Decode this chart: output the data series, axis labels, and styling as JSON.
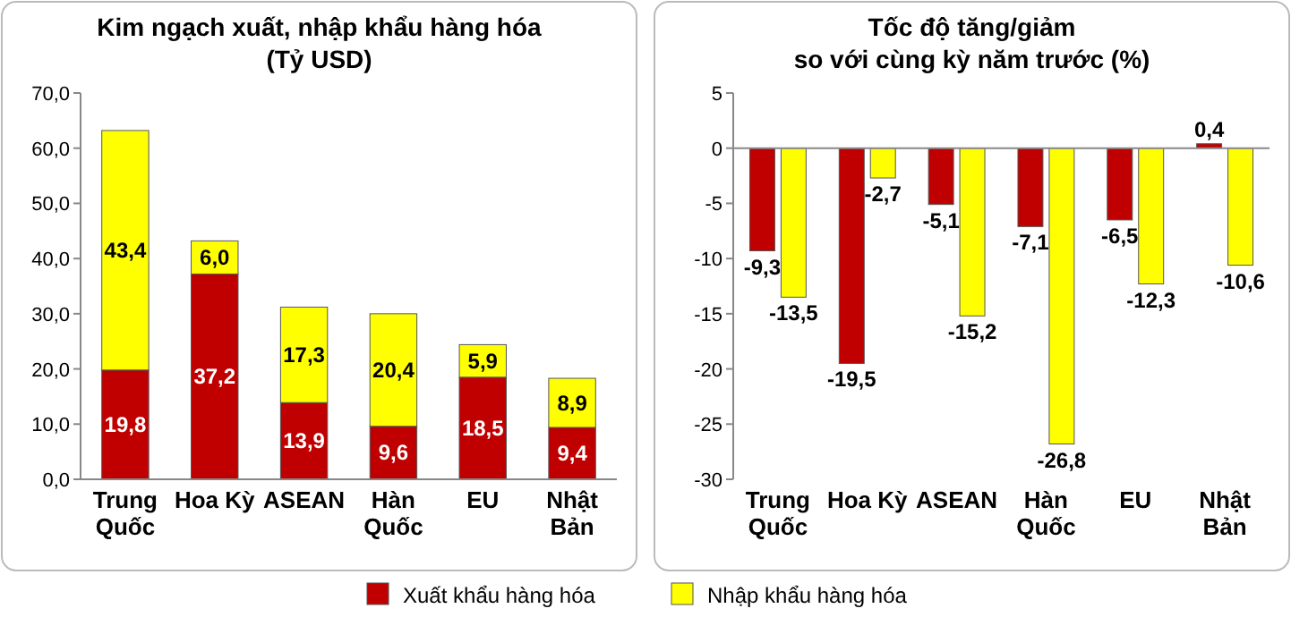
{
  "chart_data": [
    {
      "type": "bar",
      "title": "Kim ngạch xuất, nhập khẩu hàng hóa",
      "subtitle": "(Tỷ USD)",
      "stacked": true,
      "legend": "bottom",
      "categories": [
        "Trung Quốc",
        "Hoa Kỳ",
        "ASEAN",
        "Hàn Quốc",
        "EU",
        "Nhật Bản"
      ],
      "ylim": [
        0,
        70
      ],
      "yticks": [
        {
          "value": 0,
          "label": "0,0"
        },
        {
          "value": 10,
          "label": "10,0"
        },
        {
          "value": 20,
          "label": "20,0"
        },
        {
          "value": 30,
          "label": "30,0"
        },
        {
          "value": 40,
          "label": "40,0"
        },
        {
          "value": 50,
          "label": "50,0"
        },
        {
          "value": 60,
          "label": "60,0"
        },
        {
          "value": 70,
          "label": "70,0"
        }
      ],
      "series": [
        {
          "name": "Xuất khẩu hàng hóa",
          "color": "#c00000",
          "values": [
            19.8,
            37.2,
            13.9,
            9.6,
            18.5,
            9.4
          ],
          "value_labels": [
            "19,8",
            "37,2",
            "13,9",
            "9,6",
            "18,5",
            "9,4"
          ]
        },
        {
          "name": "Nhập khẩu hàng hóa",
          "color": "#ffff00",
          "values": [
            43.4,
            6.0,
            17.3,
            20.4,
            5.9,
            8.9
          ],
          "value_labels": [
            "43,4",
            "6,0",
            "17,3",
            "20,4",
            "5,9",
            "8,9"
          ]
        }
      ]
    },
    {
      "type": "bar",
      "title": "Tốc độ tăng/giảm",
      "subtitle": "so với cùng kỳ năm trước (%)",
      "categories": [
        "Trung Quốc",
        "Hoa Kỳ",
        "ASEAN",
        "Hàn Quốc",
        "EU",
        "Nhật Bản"
      ],
      "ylim": [
        -30,
        5
      ],
      "yticks": [
        -30,
        -25,
        -20,
        -15,
        -10,
        -5,
        0,
        5
      ],
      "series": [
        {
          "color": "#c00000",
          "values": [
            -9.3,
            -19.5,
            -5.1,
            -7.1,
            -6.5,
            0.4
          ],
          "value_labels": [
            "-9,3",
            "-19,5",
            "-5,1",
            "-7,1",
            "-6,5",
            "0,4"
          ]
        },
        {
          "color": "#ffff00",
          "values": [
            -13.5,
            -2.7,
            -15.2,
            -26.8,
            -12.3,
            -10.6
          ],
          "value_labels": [
            "-13,5",
            "-2,7",
            "-15,2",
            "-26,8",
            "-12,3",
            "-10,6"
          ]
        }
      ]
    }
  ]
}
